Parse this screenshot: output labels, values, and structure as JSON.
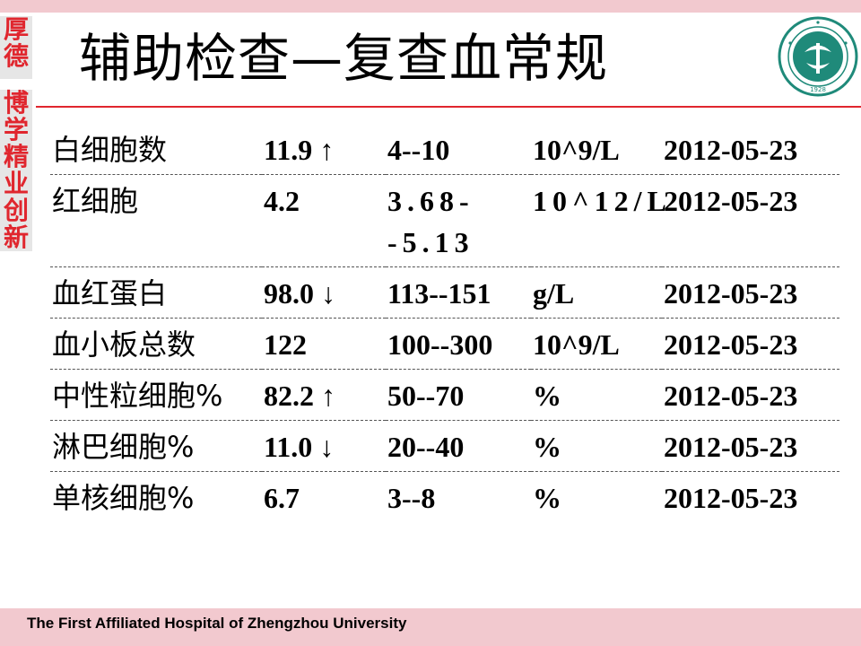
{
  "slide": {
    "title": "辅助检查—复查血常规",
    "footer": "The First Affiliated Hospital of Zhengzhou University",
    "motto_top": [
      "厚",
      "德"
    ],
    "motto_bottom": [
      "博",
      "学",
      "精",
      "业",
      "创",
      "新"
    ],
    "logo": {
      "icon": "hospital-seal-logo",
      "year": "1928"
    }
  },
  "colors": {
    "accent_red": "#e0262e",
    "band_pink": "#f2c9cf",
    "logo_teal": "#1f8a7a"
  },
  "table": {
    "rows": [
      {
        "name": "白细胞数",
        "value": "11.9 ↑",
        "reference": "4--10",
        "unit": "10^9/L",
        "date": "2012-05-23"
      },
      {
        "name": "红细胞",
        "value": "4.2",
        "reference": "3.68--5.13",
        "unit": "10^12/L",
        "date": "2012-05-23"
      },
      {
        "name": "血红蛋白",
        "value": "98.0 ↓",
        "reference": "113--151",
        "unit": "g/L",
        "date": "2012-05-23"
      },
      {
        "name": "血小板总数",
        "value": "122",
        "reference": "100--300",
        "unit": "10^9/L",
        "date": "2012-05-23"
      },
      {
        "name": "中性粒细胞%",
        "value": "82.2 ↑",
        "reference": "50--70",
        "unit": "%",
        "date": "2012-05-23"
      },
      {
        "name": "淋巴细胞%",
        "value": "11.0 ↓",
        "reference": "20--40",
        "unit": "%",
        "date": "2012-05-23"
      },
      {
        "name": "单核细胞%",
        "value": "6.7",
        "reference": "3--8",
        "unit": "%",
        "date": "2012-05-23"
      }
    ]
  }
}
